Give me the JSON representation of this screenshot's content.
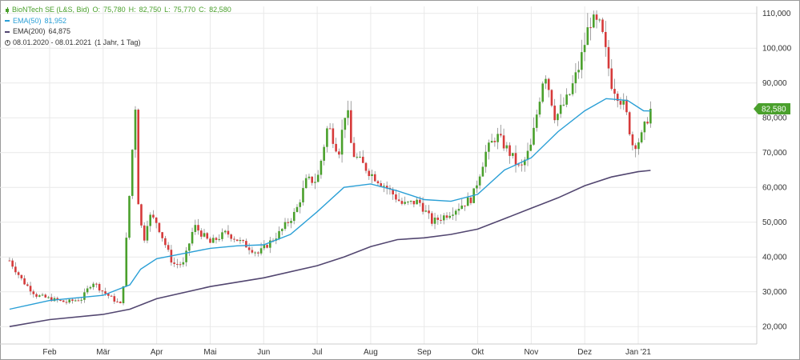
{
  "legend": {
    "instrument": "BioNTech SE (L&S, Bid)",
    "open_label": "O:",
    "open": "75,780",
    "high_label": "H:",
    "high": "82,750",
    "low_label": "L:",
    "low": "75,770",
    "close_label": "C:",
    "close": "82,580",
    "ema50_label": "EMA(50)",
    "ema50_value": "81,952",
    "ema200_label": "EMA(200)",
    "ema200_value": "64,875",
    "range": "08.01.2020 - 08.01.2021",
    "period": "(1 Jahr, 1 Tag)"
  },
  "colors": {
    "up": "#4aa02c",
    "down": "#d63a3a",
    "ema50": "#2a9fd6",
    "ema200": "#524670",
    "badge": "#4aa02c",
    "grid": "#e9e9e9"
  },
  "last_price_badge": "82,580",
  "chart_data": {
    "type": "candlestick",
    "ylim": [
      15,
      112
    ],
    "y_ticks": [
      20,
      30,
      40,
      50,
      60,
      70,
      80,
      90,
      100,
      110
    ],
    "y_tick_labels": [
      "20,000",
      "30,000",
      "40,000",
      "50,000",
      "60,000",
      "70,000",
      "80,000",
      "90,000",
      "100,000",
      "110,000"
    ],
    "x_tick_labels": [
      "Feb",
      "Mär",
      "Apr",
      "Mai",
      "Jun",
      "Jul",
      "Aug",
      "Sep",
      "Okt",
      "Nov",
      "Dez",
      "Jan '21"
    ],
    "x_tick_months": [
      1,
      2,
      3,
      4,
      5,
      6,
      7,
      8,
      9,
      10,
      11,
      12
    ],
    "month_start": "2020-01-01",
    "month_end": "2021-01-08",
    "keypoints": [
      [
        0.25,
        39
      ],
      [
        0.5,
        33
      ],
      [
        0.75,
        29
      ],
      [
        1.0,
        28
      ],
      [
        1.3,
        27
      ],
      [
        1.6,
        28
      ],
      [
        1.8,
        33
      ],
      [
        2.0,
        30
      ],
      [
        2.35,
        26
      ],
      [
        2.5,
        60
      ],
      [
        2.6,
        84
      ],
      [
        2.65,
        57
      ],
      [
        2.75,
        44
      ],
      [
        2.85,
        52
      ],
      [
        3.0,
        50
      ],
      [
        3.15,
        44
      ],
      [
        3.3,
        38
      ],
      [
        3.5,
        38
      ],
      [
        3.7,
        49
      ],
      [
        4.0,
        44
      ],
      [
        4.3,
        47
      ],
      [
        4.6,
        44
      ],
      [
        4.9,
        41
      ],
      [
        5.1,
        44
      ],
      [
        5.3,
        47
      ],
      [
        5.6,
        53
      ],
      [
        5.8,
        62
      ],
      [
        6.0,
        62
      ],
      [
        6.2,
        78
      ],
      [
        6.4,
        70
      ],
      [
        6.55,
        84
      ],
      [
        6.65,
        70
      ],
      [
        7.0,
        64
      ],
      [
        7.3,
        60
      ],
      [
        7.6,
        55
      ],
      [
        7.9,
        56
      ],
      [
        8.15,
        50
      ],
      [
        8.4,
        52
      ],
      [
        8.7,
        55
      ],
      [
        8.9,
        57
      ],
      [
        9.15,
        70
      ],
      [
        9.35,
        75
      ],
      [
        9.55,
        71
      ],
      [
        9.8,
        65
      ],
      [
        10.0,
        72
      ],
      [
        10.25,
        94
      ],
      [
        10.45,
        80
      ],
      [
        10.7,
        86
      ],
      [
        10.9,
        95
      ],
      [
        11.1,
        108
      ],
      [
        11.3,
        106
      ],
      [
        11.5,
        90
      ],
      [
        11.75,
        83
      ],
      [
        11.9,
        72
      ],
      [
        12.05,
        74
      ],
      [
        12.23,
        82.58
      ]
    ],
    "ema50_values": [
      [
        0.25,
        25
      ],
      [
        1.0,
        27.5
      ],
      [
        2.0,
        29
      ],
      [
        2.5,
        32
      ],
      [
        2.7,
        36.5
      ],
      [
        3.0,
        39.5
      ],
      [
        3.5,
        41
      ],
      [
        4.0,
        42.5
      ],
      [
        4.5,
        43.2
      ],
      [
        5.0,
        43.5
      ],
      [
        5.5,
        46.5
      ],
      [
        6.0,
        53
      ],
      [
        6.5,
        60
      ],
      [
        7.0,
        61
      ],
      [
        7.5,
        59
      ],
      [
        8.0,
        56.5
      ],
      [
        8.5,
        56
      ],
      [
        9.0,
        58
      ],
      [
        9.5,
        65
      ],
      [
        10.0,
        68.5
      ],
      [
        10.5,
        76
      ],
      [
        11.0,
        82
      ],
      [
        11.4,
        85.5
      ],
      [
        11.8,
        85
      ],
      [
        12.1,
        82
      ],
      [
        12.23,
        81.952
      ]
    ],
    "ema200_values": [
      [
        0.25,
        20
      ],
      [
        1.0,
        22
      ],
      [
        2.0,
        23.5
      ],
      [
        2.5,
        25
      ],
      [
        3.0,
        28
      ],
      [
        4.0,
        31.5
      ],
      [
        5.0,
        34
      ],
      [
        6.0,
        37.5
      ],
      [
        6.5,
        40
      ],
      [
        7.0,
        43
      ],
      [
        7.5,
        45
      ],
      [
        8.0,
        45.5
      ],
      [
        8.5,
        46.5
      ],
      [
        9.0,
        48
      ],
      [
        9.5,
        51
      ],
      [
        10.0,
        54
      ],
      [
        10.5,
        57
      ],
      [
        11.0,
        60.5
      ],
      [
        11.5,
        63
      ],
      [
        12.0,
        64.5
      ],
      [
        12.23,
        64.875
      ]
    ],
    "last_close": 82.58
  }
}
